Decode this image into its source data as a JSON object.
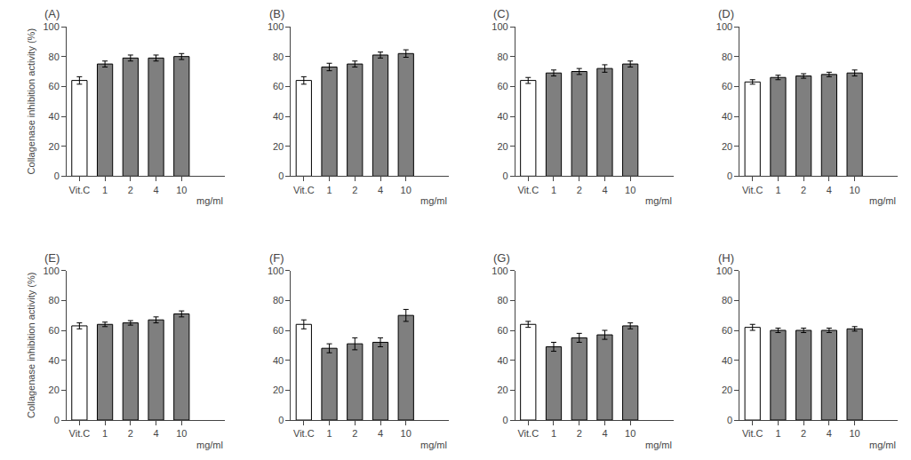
{
  "chart_data": [
    {
      "type": "bar",
      "title": "(A)",
      "ylabel": "Collagenase inhibition activity (%)",
      "annotations": [
        "mg/ml"
      ],
      "categories": [
        "Vit.C",
        "1",
        "2",
        "4",
        "10"
      ],
      "values": [
        64,
        75,
        79,
        79,
        80
      ],
      "errors": [
        2.5,
        2.0,
        2.0,
        2.0,
        2.0
      ],
      "colors": [
        "#ffffff",
        "#7f7f7f",
        "#7f7f7f",
        "#7f7f7f",
        "#7f7f7f"
      ],
      "ylim": [
        0,
        100
      ],
      "yticks": [
        0,
        20,
        40,
        60,
        80,
        100
      ],
      "grid": false
    },
    {
      "type": "bar",
      "title": "(B)",
      "annotations": [
        "mg/ml"
      ],
      "categories": [
        "Vit.C",
        "1",
        "2",
        "4",
        "10"
      ],
      "values": [
        64,
        73,
        75,
        81,
        82
      ],
      "errors": [
        2.5,
        2.5,
        2.0,
        2.0,
        2.5
      ],
      "colors": [
        "#ffffff",
        "#7f7f7f",
        "#7f7f7f",
        "#7f7f7f",
        "#7f7f7f"
      ],
      "ylim": [
        0,
        100
      ],
      "yticks": [
        0,
        20,
        40,
        60,
        80,
        100
      ],
      "grid": false
    },
    {
      "type": "bar",
      "title": "(C)",
      "annotations": [
        "mg/ml"
      ],
      "categories": [
        "Vit.C",
        "1",
        "2",
        "4",
        "10"
      ],
      "values": [
        64,
        69,
        70,
        72,
        75
      ],
      "errors": [
        2.0,
        2.0,
        2.0,
        2.5,
        2.0
      ],
      "colors": [
        "#ffffff",
        "#7f7f7f",
        "#7f7f7f",
        "#7f7f7f",
        "#7f7f7f"
      ],
      "ylim": [
        0,
        100
      ],
      "yticks": [
        0,
        20,
        40,
        60,
        80,
        100
      ],
      "grid": false
    },
    {
      "type": "bar",
      "title": "(D)",
      "annotations": [
        "mg/ml"
      ],
      "categories": [
        "Vit.C",
        "1",
        "2",
        "4",
        "10"
      ],
      "values": [
        63,
        66,
        67,
        68,
        69
      ],
      "errors": [
        1.5,
        1.5,
        1.5,
        1.5,
        2.0
      ],
      "colors": [
        "#ffffff",
        "#7f7f7f",
        "#7f7f7f",
        "#7f7f7f",
        "#7f7f7f"
      ],
      "ylim": [
        0,
        100
      ],
      "yticks": [
        0,
        20,
        40,
        60,
        80,
        100
      ],
      "grid": false
    },
    {
      "type": "bar",
      "title": "(E)",
      "ylabel": "Collagenase inhibition activity (%)",
      "annotations": [
        "mg/ml"
      ],
      "categories": [
        "Vit.C",
        "1",
        "2",
        "4",
        "10"
      ],
      "values": [
        63,
        64,
        65,
        67,
        71
      ],
      "errors": [
        2.0,
        1.5,
        1.5,
        2.0,
        2.0
      ],
      "colors": [
        "#ffffff",
        "#7f7f7f",
        "#7f7f7f",
        "#7f7f7f",
        "#7f7f7f"
      ],
      "ylim": [
        0,
        100
      ],
      "yticks": [
        0,
        20,
        40,
        60,
        80,
        100
      ],
      "grid": false
    },
    {
      "type": "bar",
      "title": "(F)",
      "annotations": [
        "mg/ml"
      ],
      "categories": [
        "Vit.C",
        "1",
        "2",
        "4",
        "10"
      ],
      "values": [
        64,
        48,
        51,
        52,
        70
      ],
      "errors": [
        3.0,
        3.0,
        4.0,
        3.0,
        4.0
      ],
      "colors": [
        "#ffffff",
        "#7f7f7f",
        "#7f7f7f",
        "#7f7f7f",
        "#7f7f7f"
      ],
      "ylim": [
        0,
        100
      ],
      "yticks": [
        0,
        20,
        40,
        60,
        80,
        100
      ],
      "grid": false
    },
    {
      "type": "bar",
      "title": "(G)",
      "annotations": [
        "mg/ml"
      ],
      "categories": [
        "Vit.C",
        "1",
        "2",
        "4",
        "10"
      ],
      "values": [
        64,
        49,
        55,
        57,
        63
      ],
      "errors": [
        2.0,
        3.0,
        3.0,
        3.0,
        2.0
      ],
      "colors": [
        "#ffffff",
        "#7f7f7f",
        "#7f7f7f",
        "#7f7f7f",
        "#7f7f7f"
      ],
      "ylim": [
        0,
        100
      ],
      "yticks": [
        0,
        20,
        40,
        60,
        80,
        100
      ],
      "grid": false
    },
    {
      "type": "bar",
      "title": "(H)",
      "annotations": [
        "mg/ml"
      ],
      "categories": [
        "Vit.C",
        "1",
        "2",
        "4",
        "10"
      ],
      "values": [
        62,
        60,
        60,
        60,
        61
      ],
      "errors": [
        2.0,
        1.5,
        1.5,
        1.5,
        1.5
      ],
      "colors": [
        "#ffffff",
        "#7f7f7f",
        "#7f7f7f",
        "#7f7f7f",
        "#7f7f7f"
      ],
      "ylim": [
        0,
        100
      ],
      "yticks": [
        0,
        20,
        40,
        60,
        80,
        100
      ],
      "grid": false
    }
  ]
}
